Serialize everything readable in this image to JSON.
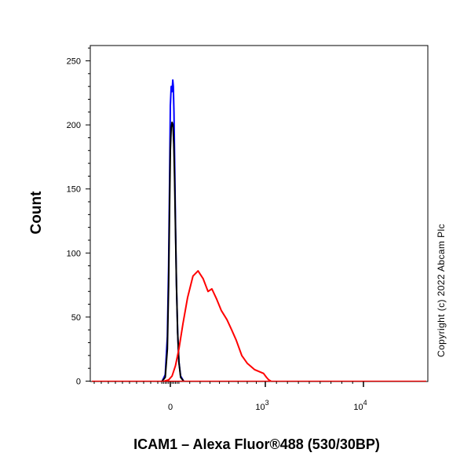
{
  "chart_data": {
    "type": "line",
    "title": "",
    "xlabel": "ICAM1 – Alexa Fluor®488 (530/30BP)",
    "ylabel": "Count",
    "copyright": "Copyright (c) 2022 Abcam Plc",
    "x_scale": "biexponential",
    "x_ticks": [
      {
        "value": 0,
        "label": "0"
      },
      {
        "value": 1000,
        "label": "10",
        "exp": "3"
      },
      {
        "value": 10000,
        "label": "10",
        "exp": "4"
      }
    ],
    "ylim": [
      0,
      260
    ],
    "y_ticks": [
      0,
      50,
      100,
      150,
      200,
      250
    ],
    "grid": false,
    "series": [
      {
        "color": "#0000ff",
        "x": [
          -95,
          -60,
          -35,
          -20,
          -8,
          0,
          10,
          20,
          28,
          35,
          42,
          50,
          60,
          72,
          85,
          100,
          120,
          145
        ],
        "y": [
          0,
          5,
          35,
          90,
          160,
          215,
          230,
          226,
          235,
          230,
          210,
          175,
          125,
          75,
          38,
          15,
          4,
          0
        ]
      },
      {
        "color": "#000000",
        "x": [
          -95,
          -60,
          -35,
          -20,
          -8,
          0,
          10,
          20,
          30,
          40,
          50,
          60,
          72,
          85,
          100,
          120,
          145
        ],
        "y": [
          0,
          3,
          25,
          75,
          140,
          180,
          198,
          202,
          200,
          185,
          158,
          120,
          75,
          38,
          15,
          3,
          0
        ]
      },
      {
        "color": "#ff0000",
        "x": [
          -70,
          -20,
          20,
          60,
          100,
          140,
          180,
          230,
          280,
          330,
          380,
          420,
          470,
          520,
          580,
          630,
          680,
          740,
          800,
          880,
          980,
          1100,
          1300,
          1500
        ],
        "y": [
          0,
          1,
          4,
          12,
          25,
          45,
          65,
          82,
          86,
          80,
          70,
          72,
          64,
          55,
          48,
          40,
          32,
          20,
          14,
          9,
          6,
          3,
          1,
          0
        ]
      }
    ]
  }
}
